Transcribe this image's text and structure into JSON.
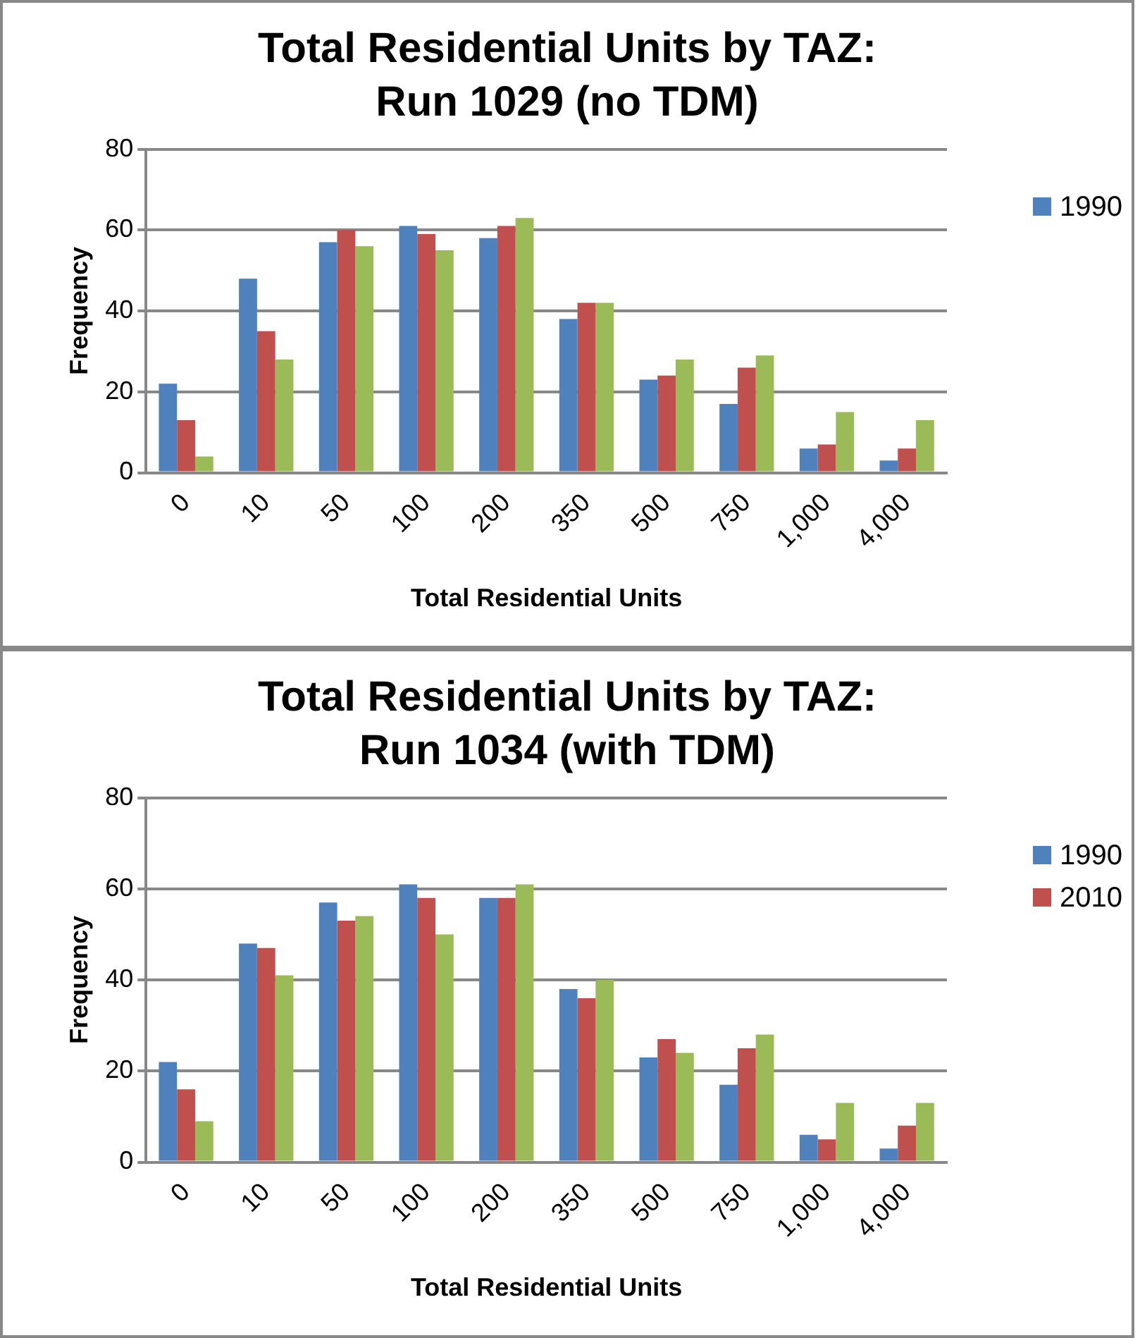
{
  "chart_data": [
    {
      "type": "bar",
      "title": "Total Residential Units by TAZ: Run 1029  (no TDM)",
      "xlabel": "Total Residential Units",
      "ylabel": "Frequency",
      "categories": [
        "0",
        "10",
        "50",
        "100",
        "200",
        "350",
        "500",
        "750",
        "1,000",
        "4,000"
      ],
      "series": [
        {
          "name": "1990",
          "color": "#4f81bd",
          "values": [
            22,
            48,
            57,
            61,
            58,
            38,
            23,
            17,
            6,
            3
          ]
        },
        {
          "color": "#c0504d",
          "values": [
            13,
            35,
            60,
            59,
            61,
            42,
            24,
            26,
            7,
            6
          ]
        },
        {
          "color": "#9bbb59",
          "values": [
            4,
            28,
            56,
            55,
            63,
            42,
            28,
            29,
            15,
            13
          ]
        }
      ],
      "ylim": [
        0,
        80
      ],
      "yticks": [
        0,
        20,
        40,
        60,
        80
      ],
      "grid": "y",
      "legend": "right"
    },
    {
      "type": "bar",
      "title": "Total Residential Units by TAZ: Run 1034 (with  TDM)",
      "xlabel": "Total Residential Units",
      "ylabel": "Frequency",
      "categories": [
        "0",
        "10",
        "50",
        "100",
        "200",
        "350",
        "500",
        "750",
        "1,000",
        "4,000"
      ],
      "series": [
        {
          "name": "1990",
          "color": "#4f81bd",
          "values": [
            22,
            48,
            57,
            61,
            58,
            38,
            23,
            17,
            6,
            3
          ]
        },
        {
          "name": "2010",
          "color": "#c0504d",
          "values": [
            16,
            47,
            53,
            58,
            58,
            36,
            27,
            25,
            5,
            8
          ]
        },
        {
          "color": "#9bbb59",
          "values": [
            9,
            41,
            54,
            50,
            61,
            40,
            24,
            28,
            13,
            13
          ]
        }
      ],
      "ylim": [
        0,
        80
      ],
      "yticks": [
        0,
        20,
        40,
        60,
        80
      ],
      "grid": "y",
      "legend": "right"
    }
  ]
}
